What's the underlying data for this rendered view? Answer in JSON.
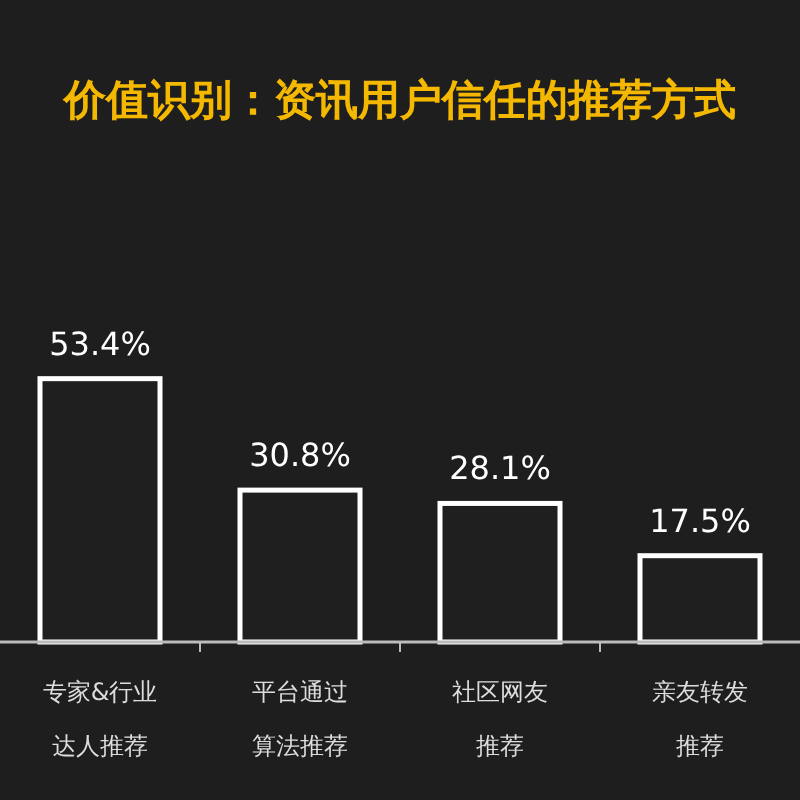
{
  "chart_data": {
    "type": "bar",
    "title": "价值识别：资讯用户信任的推荐方式",
    "categories": [
      "专家&行业达人推荐",
      "平台通过算法推荐",
      "社区网友推荐",
      "亲友转发推荐"
    ],
    "values": [
      53.4,
      30.8,
      28.1,
      17.5
    ],
    "value_labels": [
      "53.4%",
      "30.8%",
      "28.1%",
      "17.5%"
    ],
    "color": "#1f1f1f"
  }
}
